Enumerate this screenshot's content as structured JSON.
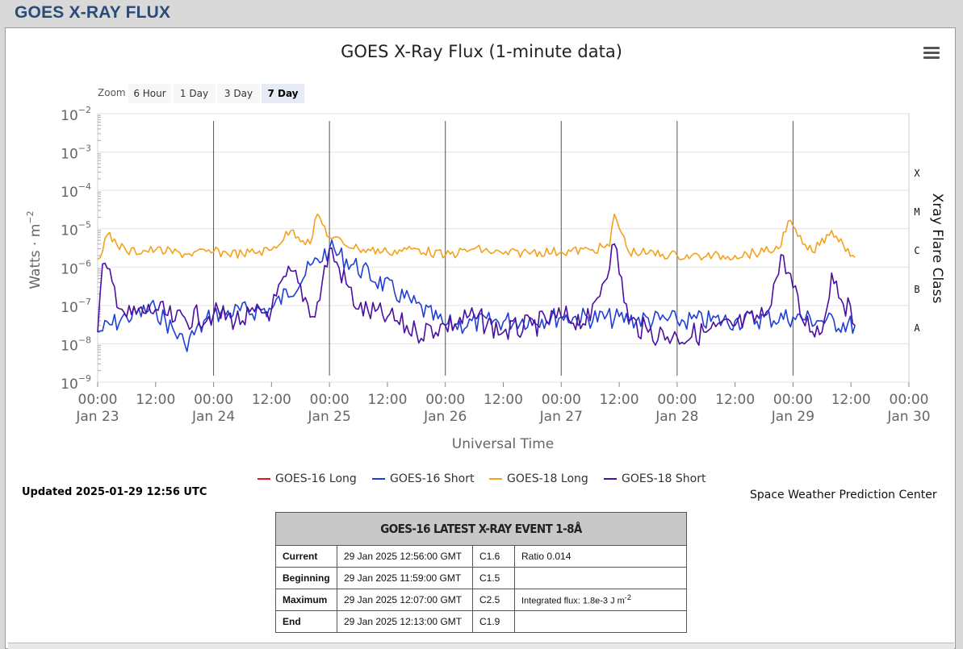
{
  "page": {
    "title": "GOES X-RAY FLUX"
  },
  "chart": {
    "title": "GOES X-Ray Flux (1-minute data)",
    "zoom": {
      "label": "Zoom",
      "buttons": [
        "6 Hour",
        "1 Day",
        "3 Day",
        "7 Day"
      ],
      "active": "7 Day"
    },
    "ylabel": "Watts · m",
    "ylabel_sup": "−2",
    "xlabel": "Universal Time",
    "right_axis_title": "Xray Flare Class",
    "y_ticks": [
      {
        "base": "10",
        "exp": "−2"
      },
      {
        "base": "10",
        "exp": "−3"
      },
      {
        "base": "10",
        "exp": "−4"
      },
      {
        "base": "10",
        "exp": "−5"
      },
      {
        "base": "10",
        "exp": "−6"
      },
      {
        "base": "10",
        "exp": "−7"
      },
      {
        "base": "10",
        "exp": "−8"
      },
      {
        "base": "10",
        "exp": "−9"
      }
    ],
    "x_ticks": [
      [
        "00:00",
        "Jan 23"
      ],
      [
        "12:00",
        ""
      ],
      [
        "00:00",
        "Jan 24"
      ],
      [
        "12:00",
        ""
      ],
      [
        "00:00",
        "Jan 25"
      ],
      [
        "12:00",
        ""
      ],
      [
        "00:00",
        "Jan 26"
      ],
      [
        "12:00",
        ""
      ],
      [
        "00:00",
        "Jan 27"
      ],
      [
        "12:00",
        ""
      ],
      [
        "00:00",
        "Jan 28"
      ],
      [
        "12:00",
        ""
      ],
      [
        "00:00",
        "Jan 29"
      ],
      [
        "12:00",
        ""
      ],
      [
        "00:00",
        "Jan 30"
      ]
    ],
    "flare_classes": [
      "X",
      "M",
      "C",
      "B",
      "A"
    ],
    "legend": [
      {
        "name": "GOES-16 Long",
        "color": "#e8101e"
      },
      {
        "name": "GOES-16 Short",
        "color": "#1f3fd6"
      },
      {
        "name": "GOES-18 Long",
        "color": "#f4a11c"
      },
      {
        "name": "GOES-18 Short",
        "color": "#4b0fa0"
      }
    ],
    "updated": "Updated 2025-01-29 12:56 UTC",
    "credit": "Space Weather Prediction Center"
  },
  "chart_data": {
    "type": "line",
    "title": "GOES X-Ray Flux (1-minute data)",
    "xlabel": "Universal Time",
    "ylabel": "Watts · m−2",
    "y_scale": "log",
    "ylim": [
      1e-09,
      0.01
    ],
    "xlim_hours_from": "Jan 23 00:00",
    "xlim": [
      "2025-01-23 00:00",
      "2025-01-30 00:00"
    ],
    "grid": true,
    "legend_position": "bottom",
    "series": [
      {
        "name": "GOES-18 Long",
        "x": [
          "2025-01-23 00:00",
          "2025-01-23 02:00",
          "2025-01-23 06:00",
          "2025-01-23 12:00",
          "2025-01-23 18:00",
          "2025-01-24 00:00",
          "2025-01-24 06:00",
          "2025-01-24 12:00",
          "2025-01-24 16:00",
          "2025-01-24 20:00",
          "2025-01-24 21:30",
          "2025-01-25 00:00",
          "2025-01-25 06:00",
          "2025-01-25 12:00",
          "2025-01-25 18:00",
          "2025-01-26 00:00",
          "2025-01-26 06:00",
          "2025-01-26 12:00",
          "2025-01-26 18:00",
          "2025-01-27 00:00",
          "2025-01-27 06:00",
          "2025-01-27 10:00",
          "2025-01-27 11:00",
          "2025-01-27 14:00",
          "2025-01-27 18:00",
          "2025-01-28 00:00",
          "2025-01-28 06:00",
          "2025-01-28 12:00",
          "2025-01-28 18:00",
          "2025-01-28 21:00",
          "2025-01-28 23:00",
          "2025-01-29 02:00",
          "2025-01-29 04:00",
          "2025-01-29 08:00",
          "2025-01-29 12:50"
        ],
        "values": [
          1.6e-06,
          7e-06,
          2.5e-06,
          2.8e-06,
          2.2e-06,
          2.5e-06,
          2.2e-06,
          2.8e-06,
          9e-06,
          4e-06,
          2.4e-05,
          6e-06,
          3e-06,
          2.5e-06,
          3e-06,
          2e-06,
          3e-06,
          2.2e-06,
          2.5e-06,
          2.5e-06,
          2.8e-06,
          3.5e-06,
          2.4e-05,
          2.5e-06,
          2.3e-06,
          2e-06,
          1.9e-06,
          2e-06,
          2.5e-06,
          3e-06,
          1.6e-05,
          4e-06,
          2.5e-06,
          9e-06,
          1.8e-06
        ]
      },
      {
        "name": "GOES-18 Short",
        "x": [
          "2025-01-23 00:00",
          "2025-01-23 01:00",
          "2025-01-23 06:00",
          "2025-01-23 12:00",
          "2025-01-23 16:00",
          "2025-01-24 00:00",
          "2025-01-24 06:00",
          "2025-01-24 12:00",
          "2025-01-24 16:00",
          "2025-01-24 21:00",
          "2025-01-25 00:00",
          "2025-01-25 06:00",
          "2025-01-25 12:00",
          "2025-01-25 18:00",
          "2025-01-26 00:00",
          "2025-01-26 06:00",
          "2025-01-26 12:00",
          "2025-01-26 18:00",
          "2025-01-27 00:00",
          "2025-01-27 06:00",
          "2025-01-27 11:00",
          "2025-01-27 14:00",
          "2025-01-27 18:00",
          "2025-01-28 00:00",
          "2025-01-28 06:00",
          "2025-01-28 12:00",
          "2025-01-28 18:00",
          "2025-01-28 22:00",
          "2025-01-29 02:00",
          "2025-01-29 06:00",
          "2025-01-29 08:00",
          "2025-01-29 12:50"
        ],
        "values": [
          2e-08,
          1.2e-06,
          5e-08,
          8e-08,
          4e-08,
          6e-08,
          4e-08,
          8e-08,
          8e-07,
          5e-08,
          3e-06,
          8e-08,
          5e-08,
          2e-08,
          3e-08,
          5e-08,
          2e-08,
          3e-08,
          5e-08,
          4e-08,
          4e-06,
          4e-08,
          2e-08,
          1.5e-08,
          2e-08,
          3e-08,
          5e-08,
          2e-06,
          4e-08,
          2e-08,
          7e-07,
          3e-08
        ]
      },
      {
        "name": "GOES-16 Short",
        "x": [
          "2025-01-23 00:00",
          "2025-01-23 06:00",
          "2025-01-23 12:00",
          "2025-01-23 18:00",
          "2025-01-24 00:00",
          "2025-01-24 12:00",
          "2025-01-25 00:00",
          "2025-01-26 00:00",
          "2025-01-27 00:00",
          "2025-01-28 00:00",
          "2025-01-28 12:00",
          "2025-01-29 00:00",
          "2025-01-29 06:00",
          "2025-01-29 12:50"
        ],
        "values": [
          2e-08,
          5e-08,
          8e-08,
          1e-08,
          6e-08,
          8e-08,
          3e-06,
          3e-08,
          5e-08,
          4e-08,
          4e-08,
          5e-08,
          4e-08,
          3e-08
        ]
      },
      {
        "name": "GOES-16 Long",
        "x": [],
        "values": []
      }
    ],
    "right_axis": {
      "title": "Xray Flare Class",
      "categories": [
        "X",
        "M",
        "C",
        "B",
        "A"
      ]
    }
  },
  "event_table": {
    "title": "GOES-16 LATEST X-RAY EVENT 1-8Å",
    "rows": [
      {
        "label": "Current",
        "time": "29 Jan 2025 12:56:00 GMT",
        "class": "C1.6",
        "extra": "Ratio 0.014",
        "extra_sup": ""
      },
      {
        "label": "Beginning",
        "time": "29 Jan 2025 11:59:00 GMT",
        "class": "C1.5",
        "extra": "",
        "extra_sup": ""
      },
      {
        "label": "Maximum",
        "time": "29 Jan 2025 12:07:00 GMT",
        "class": "C2.5",
        "extra": "Integrated flux: 1.8e-3 J m",
        "extra_sup": "-2"
      },
      {
        "label": "End",
        "time": "29 Jan 2025 12:13:00 GMT",
        "class": "C1.9",
        "extra": "",
        "extra_sup": ""
      }
    ]
  }
}
